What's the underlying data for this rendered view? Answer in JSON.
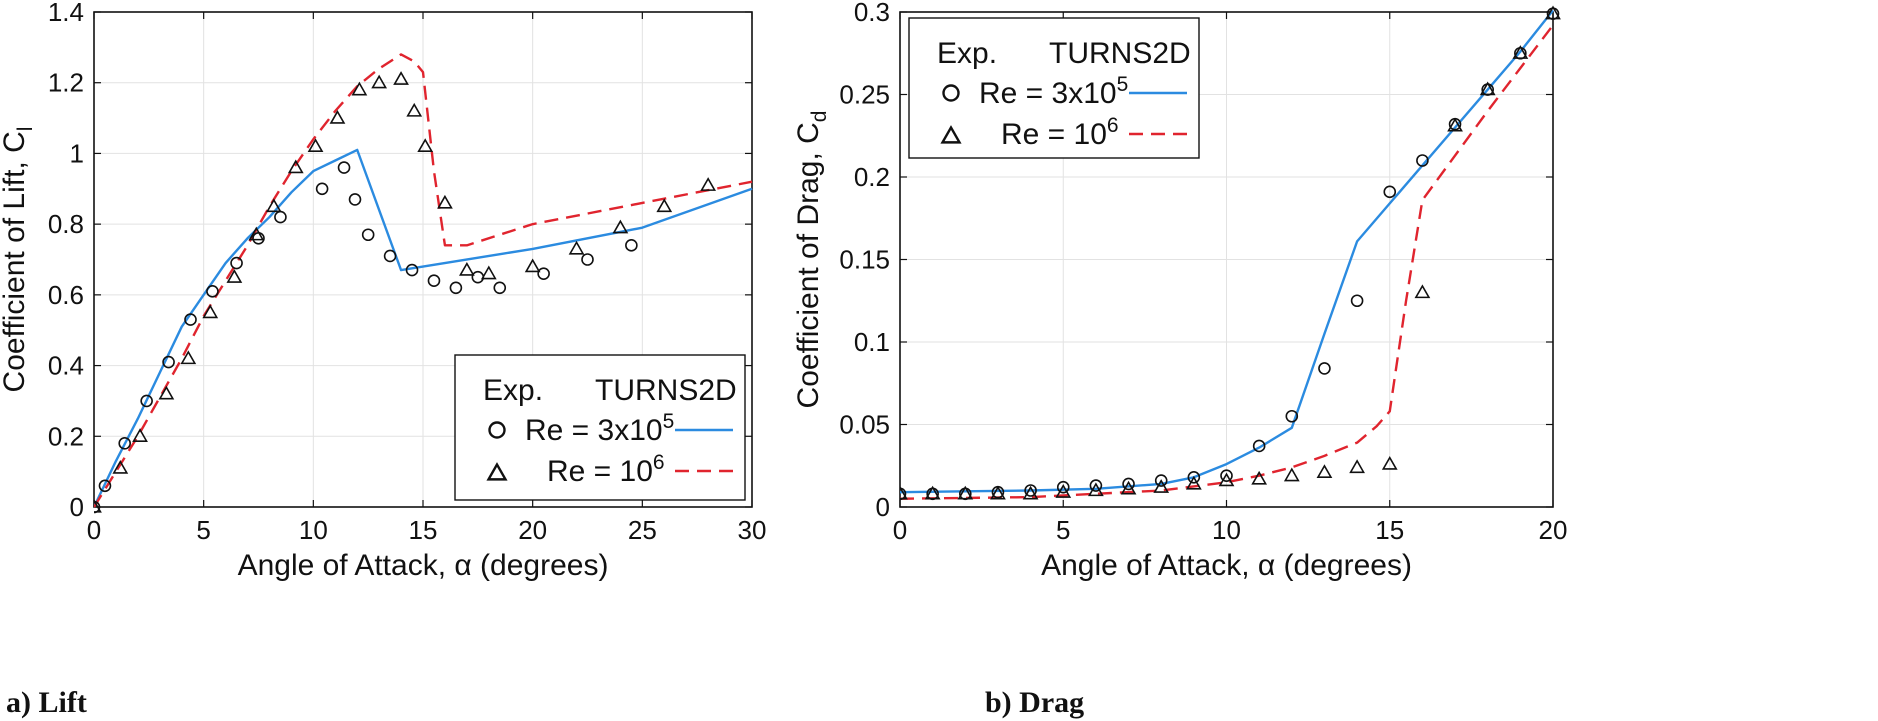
{
  "chart_data": [
    {
      "type": "line",
      "caption": "a) Lift",
      "xlabel": "Angle of Attack, α (degrees)",
      "ylabel": "Coefficient of Lift, C",
      "ylabel_sub": "l",
      "xlim": [
        0,
        30
      ],
      "ylim": [
        0,
        1.4
      ],
      "xticks": [
        0,
        5,
        10,
        15,
        20,
        25,
        30
      ],
      "yticks": [
        0,
        0.2,
        0.4,
        0.6,
        0.8,
        1,
        1.2,
        1.4
      ],
      "ytick_labels": [
        "0",
        "0.2",
        "0.4",
        "0.6",
        "0.8",
        "1",
        "1.2",
        "1.4"
      ],
      "grid": true,
      "legend": {
        "placement": "bottom-right",
        "header_left": "Exp.",
        "header_right": "TURNS2D",
        "entries": [
          {
            "label_base": "Re = 3x10",
            "label_sup": "5",
            "marker": "circle",
            "line": "solid",
            "color": "#2b8be0"
          },
          {
            "label_base": "Re = 10",
            "label_sup": "6",
            "marker": "triangle",
            "line": "dashed",
            "color": "#e0242e"
          }
        ]
      },
      "series": [
        {
          "marker": "circle",
          "kind": "scatter",
          "x": [
            0,
            0.5,
            1.4,
            2.4,
            3.4,
            4.4,
            5.4,
            6.5,
            7.5,
            8.5,
            10.4,
            11.4,
            11.9,
            12.5,
            13.5,
            14.5,
            15.5,
            16.5,
            17.5,
            18.5,
            20.5,
            22.5,
            24.5
          ],
          "y": [
            0,
            0.06,
            0.18,
            0.3,
            0.41,
            0.53,
            0.61,
            0.69,
            0.76,
            0.82,
            0.9,
            0.96,
            0.87,
            0.77,
            0.71,
            0.67,
            0.64,
            0.62,
            0.65,
            0.62,
            0.66,
            0.7,
            0.74
          ]
        },
        {
          "marker": "triangle",
          "kind": "scatter",
          "x": [
            0,
            1.2,
            2.1,
            3.3,
            4.3,
            5.3,
            6.4,
            7.4,
            8.2,
            9.2,
            10.1,
            11.1,
            12.1,
            13.0,
            14.0,
            14.6,
            15.1,
            16.0,
            17.0,
            18.0,
            20.0,
            22.0,
            24.0,
            26.0,
            28.0
          ],
          "y": [
            0,
            0.11,
            0.2,
            0.32,
            0.42,
            0.55,
            0.65,
            0.77,
            0.85,
            0.96,
            1.02,
            1.1,
            1.18,
            1.2,
            1.21,
            1.12,
            1.02,
            0.86,
            0.67,
            0.66,
            0.68,
            0.73,
            0.79,
            0.85,
            0.91
          ]
        },
        {
          "kind": "line",
          "style": "solid",
          "color": "#2b8be0",
          "x": [
            0,
            1,
            2,
            3,
            4,
            5,
            6,
            7,
            8,
            9,
            10,
            11,
            12,
            14,
            15,
            20,
            25,
            30
          ],
          "y": [
            0,
            0.13,
            0.25,
            0.38,
            0.51,
            0.6,
            0.69,
            0.76,
            0.82,
            0.89,
            0.95,
            0.98,
            1.01,
            0.67,
            0.68,
            0.73,
            0.79,
            0.9
          ]
        },
        {
          "kind": "line",
          "style": "dashed",
          "color": "#e0242e",
          "x": [
            0,
            1,
            2,
            3,
            4,
            5,
            6,
            7,
            8,
            9,
            10,
            11,
            12,
            13,
            14,
            14.6,
            15.0,
            15.5,
            16.0,
            17.0,
            20,
            25,
            30
          ],
          "y": [
            0,
            0.1,
            0.2,
            0.31,
            0.42,
            0.54,
            0.64,
            0.74,
            0.85,
            0.95,
            1.04,
            1.12,
            1.19,
            1.24,
            1.28,
            1.26,
            1.23,
            0.95,
            0.74,
            0.74,
            0.8,
            0.86,
            0.92
          ]
        }
      ]
    },
    {
      "type": "line",
      "caption": "b) Drag",
      "xlabel": "Angle of Attack, α (degrees)",
      "ylabel": "Coefficient of Drag, C",
      "ylabel_sub": "d",
      "xlim": [
        0,
        20
      ],
      "ylim": [
        0,
        0.3
      ],
      "xticks": [
        0,
        5,
        10,
        15,
        20
      ],
      "yticks": [
        0,
        0.05,
        0.1,
        0.15,
        0.2,
        0.25,
        0.3
      ],
      "ytick_labels": [
        "0",
        "0.05",
        "0.1",
        "0.15",
        "0.2",
        "0.25",
        "0.3"
      ],
      "grid": true,
      "legend": {
        "placement": "top-left",
        "header_left": "Exp.",
        "header_right": "TURNS2D",
        "entries": [
          {
            "label_base": "Re = 3x10",
            "label_sup": "5",
            "marker": "circle",
            "line": "solid",
            "color": "#2b8be0"
          },
          {
            "label_base": "Re = 10",
            "label_sup": "6",
            "marker": "triangle",
            "line": "dashed",
            "color": "#e0242e"
          }
        ]
      },
      "series": [
        {
          "marker": "circle",
          "kind": "scatter",
          "x": [
            0,
            1,
            2,
            3,
            4,
            5,
            6,
            7,
            8,
            9,
            10,
            11,
            12,
            13,
            14,
            15,
            16,
            17,
            18,
            19,
            20
          ],
          "y": [
            0.008,
            0.008,
            0.008,
            0.009,
            0.01,
            0.012,
            0.013,
            0.014,
            0.016,
            0.018,
            0.019,
            0.037,
            0.055,
            0.084,
            0.125,
            0.191,
            0.21,
            0.232,
            0.253,
            0.275,
            0.299
          ]
        },
        {
          "marker": "triangle",
          "kind": "scatter",
          "x": [
            0,
            1,
            2,
            3,
            4,
            5,
            6,
            7,
            8,
            9,
            10,
            11,
            12,
            13,
            14,
            15,
            16,
            17,
            18,
            19,
            20
          ],
          "y": [
            0.008,
            0.008,
            0.008,
            0.008,
            0.008,
            0.009,
            0.01,
            0.011,
            0.012,
            0.014,
            0.016,
            0.017,
            0.019,
            0.021,
            0.024,
            0.026,
            0.13,
            0.231,
            0.253,
            0.275,
            0.299
          ]
        },
        {
          "kind": "line",
          "style": "solid",
          "color": "#2b8be0",
          "x": [
            0,
            2,
            4,
            6,
            8,
            9,
            10,
            11,
            12,
            13,
            14,
            15,
            16,
            17,
            18,
            19,
            20
          ],
          "y": [
            0.009,
            0.0095,
            0.01,
            0.011,
            0.014,
            0.018,
            0.026,
            0.036,
            0.048,
            0.105,
            0.161,
            0.184,
            0.207,
            0.23,
            0.253,
            0.276,
            0.301
          ]
        },
        {
          "kind": "line",
          "style": "dashed",
          "color": "#e0242e",
          "x": [
            0,
            2,
            4,
            6,
            8,
            10,
            11,
            12,
            13,
            14,
            14.6,
            15,
            15.5,
            16,
            17,
            18,
            19,
            20
          ],
          "y": [
            0.005,
            0.0055,
            0.006,
            0.008,
            0.01,
            0.015,
            0.019,
            0.024,
            0.031,
            0.039,
            0.049,
            0.058,
            0.125,
            0.186,
            0.213,
            0.24,
            0.266,
            0.292
          ]
        }
      ]
    }
  ]
}
